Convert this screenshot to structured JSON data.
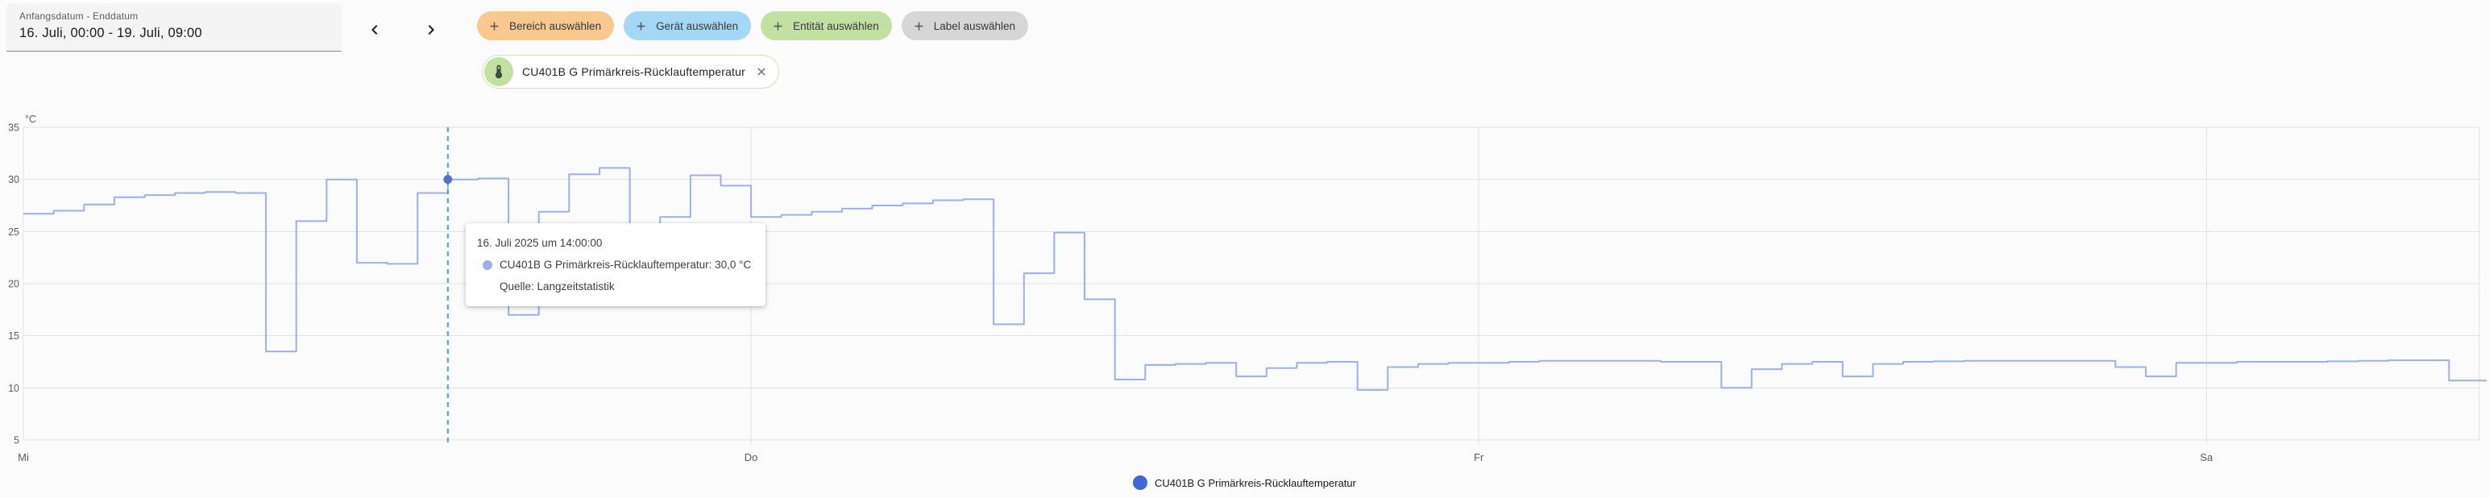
{
  "header": {
    "date_field": {
      "label": "Anfangsdatum - Enddatum",
      "value": "16. Juli, 00:00 - 19. Juli, 09:00"
    },
    "nav": {
      "prev_icon": "chevron-left",
      "next_icon": "chevron-right"
    },
    "chips": [
      {
        "id": "area",
        "label": "Bereich auswählen",
        "bg": "#f8c88f"
      },
      {
        "id": "device",
        "label": "Gerät auswählen",
        "bg": "#a5d8f6"
      },
      {
        "id": "entity",
        "label": "Entität auswählen",
        "bg": "#c3e0a3"
      },
      {
        "id": "label",
        "label": "Label auswählen",
        "bg": "#d6d6d6"
      }
    ],
    "entity_chip": {
      "icon": "thermometer-icon",
      "label": "CU401B G Primärkreis-Rücklauftemperatur",
      "close_icon": "close-x"
    }
  },
  "tooltip": {
    "title": "16. Juli 2025 um 14:00:00",
    "series_line": "CU401B G Primärkreis-Rücklauftemperatur: 30,0 °C",
    "source": "Quelle: Langzeitstatistik"
  },
  "legend": {
    "label": "CU401B G Primärkreis-Rücklauftemperatur"
  },
  "colors": {
    "series_line": "#9db0ea",
    "legend_dot": "#4265d8",
    "tooltip_dot": "#9db0ea",
    "hover_dashed_line": "#3fa2e4",
    "hover_marker": "#5571cb",
    "gridline": "#e2e2e2",
    "axis_text": "#5c5c5c"
  },
  "chart_data": {
    "type": "line",
    "step_mode": "hourly-steps",
    "unit": "°C",
    "ylabel": "°C",
    "ylim": [
      5,
      35
    ],
    "yticks": [
      5,
      10,
      15,
      20,
      25,
      30,
      35
    ],
    "x_start": "16. Juli 00:00",
    "x_end": "19. Juli 09:00",
    "xtick_labels": [
      "Mi",
      "Do",
      "Fr",
      "Sa"
    ],
    "hours_per_day": 24,
    "grid": true,
    "legend_position": "bottom-center",
    "series": [
      {
        "name": "CU401B G Primärkreis-Rücklauftemperatur",
        "source": "Langzeitstatistik",
        "hourly_values": [
          26.7,
          27.0,
          27.6,
          28.3,
          28.5,
          28.7,
          28.8,
          28.7,
          13.5,
          26.0,
          30.0,
          22.0,
          21.9,
          28.7,
          30.0,
          30.1,
          17.0,
          26.9,
          30.5,
          31.1,
          18.0,
          26.4,
          30.4,
          29.4,
          26.4,
          26.6,
          26.9,
          27.2,
          27.5,
          27.7,
          28.0,
          28.1,
          16.1,
          21.0,
          24.9,
          18.5,
          10.8,
          12.2,
          12.3,
          12.4,
          11.1,
          11.9,
          12.4,
          12.5,
          9.8,
          12.0,
          12.3,
          12.4,
          12.4,
          12.5,
          12.6,
          12.6,
          12.6,
          12.6,
          12.5,
          12.5,
          10.0,
          11.8,
          12.3,
          12.5,
          11.1,
          12.3,
          12.5,
          12.55,
          12.6,
          12.6,
          12.6,
          12.6,
          12.6,
          12.0,
          11.1,
          12.4,
          12.4,
          12.5,
          12.5,
          12.5,
          12.55,
          12.6,
          12.65,
          12.65,
          10.7
        ]
      }
    ],
    "hover": {
      "hour_index": 14,
      "value": 30.0,
      "value_label": "30,0 °C",
      "time_label": "16. Juli 2025 um 14:00:00"
    }
  }
}
